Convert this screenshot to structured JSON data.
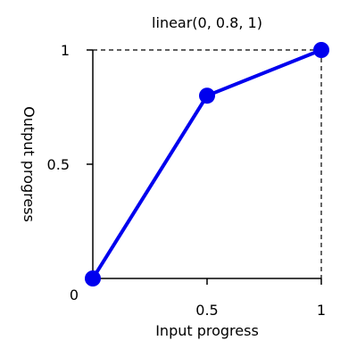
{
  "chart_data": {
    "type": "line",
    "title": "linear(0, 0.8, 1)",
    "xlabel": "Input progress",
    "ylabel": "Output progress",
    "xlim": [
      0,
      1
    ],
    "ylim": [
      0,
      1
    ],
    "origin_label": "0",
    "x_ticks": [
      {
        "value": 0.5,
        "label": "0.5"
      },
      {
        "value": 1,
        "label": "1"
      }
    ],
    "y_ticks": [
      {
        "value": 0.5,
        "label": "0.5"
      },
      {
        "value": 1,
        "label": "1"
      }
    ],
    "grid": false,
    "series": [
      {
        "color": "#0000ee",
        "points": [
          {
            "x": 0,
            "y": 0
          },
          {
            "x": 0.5,
            "y": 0.8
          },
          {
            "x": 1,
            "y": 1
          }
        ]
      }
    ],
    "guides": {
      "x": 1,
      "y": 1,
      "style": "dashed"
    }
  }
}
